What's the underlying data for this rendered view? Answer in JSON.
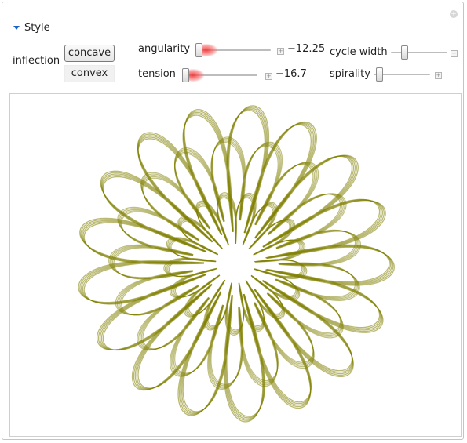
{
  "section": {
    "title": "Style"
  },
  "inflection": {
    "label": "inflection",
    "options": [
      "concave",
      "convex"
    ],
    "selected": "concave"
  },
  "angularity": {
    "label": "angularity",
    "value": -12.25,
    "value_text": "−12.25",
    "fraction": 0.0
  },
  "tension": {
    "label": "tension",
    "value": -16.7,
    "value_text": "−16.7",
    "fraction": 0.0
  },
  "cycle_width": {
    "label": "cycle width",
    "fraction": 0.2
  },
  "spirality": {
    "label": "spirality",
    "fraction": 0.05
  },
  "plot": {
    "stroke_color": "#7f7f00",
    "petals": 17,
    "layers": 5
  },
  "colors": {
    "accent": "#1e62c8",
    "glow": "#f03c3c"
  }
}
